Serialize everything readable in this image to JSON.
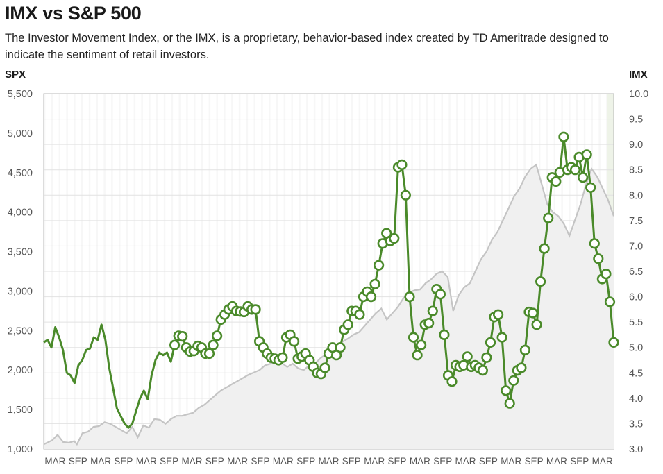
{
  "title": "IMX vs S&P 500",
  "subtitle": "The Investor Movement Index, or the IMX, is a proprietary, behavior-based index created by TD Ameritrade designed to indicate the sentiment of retail investors.",
  "left_axis_title": "SPX",
  "right_axis_title": "IMX",
  "colors": {
    "imx_line": "#4a8a2a",
    "spx_line": "#c4c4c4",
    "spx_fill": "#f0f0f0",
    "grid": "#e2e2e2",
    "tick_text": "#555555",
    "frame": "#b8b8b8"
  },
  "chart_data": {
    "type": "line",
    "title": "IMX vs S&P 500",
    "x_tick_labels": [
      "MAR",
      "SEP",
      "MAR",
      "SEP",
      "MAR",
      "SEP",
      "MAR",
      "SEP",
      "MAR",
      "SEP",
      "MAR",
      "SEP",
      "MAR",
      "SEP",
      "MAR",
      "SEP",
      "MAR",
      "SEP",
      "MAR",
      "SEP",
      "MAR",
      "SEP",
      "MAR",
      "SEP",
      "MAR"
    ],
    "y_left": {
      "label": "SPX",
      "min": 1000,
      "max": 5500,
      "ticks": [
        "1,000",
        "1,500",
        "2,000",
        "2,500",
        "3,000",
        "3,500",
        "4,000",
        "4,500",
        "5,000",
        "5,500"
      ]
    },
    "y_right": {
      "label": "IMX",
      "min": 3.0,
      "max": 10.0,
      "ticks": [
        "3.0",
        "3.5",
        "4.0",
        "4.5",
        "5.0",
        "5.5",
        "6.0",
        "6.5",
        "7.0",
        "7.5",
        "8.0",
        "8.5",
        "9.0",
        "9.5",
        "10.0"
      ]
    },
    "x_range_months": [
      0,
      152
    ],
    "series": [
      {
        "name": "SPX",
        "axis": "left",
        "style": "area",
        "points": [
          [
            0,
            1060
          ],
          [
            3,
            1110
          ],
          [
            5,
            1180
          ],
          [
            7,
            1090
          ],
          [
            9,
            1080
          ],
          [
            11,
            1100
          ],
          [
            12,
            1060
          ],
          [
            14,
            1200
          ],
          [
            16,
            1220
          ],
          [
            18,
            1280
          ],
          [
            20,
            1290
          ],
          [
            22,
            1340
          ],
          [
            24,
            1320
          ],
          [
            26,
            1280
          ],
          [
            28,
            1240
          ],
          [
            30,
            1200
          ],
          [
            32,
            1280
          ],
          [
            34,
            1150
          ],
          [
            36,
            1300
          ],
          [
            38,
            1270
          ],
          [
            40,
            1380
          ],
          [
            42,
            1370
          ],
          [
            44,
            1320
          ],
          [
            46,
            1380
          ],
          [
            48,
            1420
          ],
          [
            50,
            1420
          ],
          [
            52,
            1440
          ],
          [
            54,
            1460
          ],
          [
            56,
            1520
          ],
          [
            58,
            1560
          ],
          [
            60,
            1620
          ],
          [
            62,
            1680
          ],
          [
            64,
            1740
          ],
          [
            66,
            1780
          ],
          [
            68,
            1820
          ],
          [
            70,
            1860
          ],
          [
            72,
            1900
          ],
          [
            74,
            1940
          ],
          [
            76,
            1970
          ],
          [
            78,
            2000
          ],
          [
            80,
            2060
          ],
          [
            82,
            2080
          ],
          [
            84,
            2100
          ],
          [
            86,
            2090
          ],
          [
            88,
            2040
          ],
          [
            90,
            2080
          ],
          [
            92,
            2020
          ],
          [
            94,
            2000
          ],
          [
            96,
            2060
          ],
          [
            98,
            2080
          ],
          [
            100,
            2150
          ],
          [
            102,
            2200
          ],
          [
            104,
            2260
          ],
          [
            106,
            2320
          ],
          [
            108,
            2360
          ],
          [
            110,
            2400
          ],
          [
            112,
            2450
          ],
          [
            114,
            2480
          ],
          [
            116,
            2560
          ],
          [
            118,
            2640
          ],
          [
            120,
            2720
          ],
          [
            122,
            2780
          ],
          [
            124,
            2640
          ],
          [
            126,
            2720
          ],
          [
            128,
            2800
          ],
          [
            130,
            2910
          ],
          [
            132,
            2980
          ],
          [
            134,
            3010
          ],
          [
            136,
            3020
          ],
          [
            138,
            3100
          ],
          [
            140,
            3150
          ],
          [
            142,
            3220
          ],
          [
            144,
            3250
          ],
          [
            146,
            3180
          ],
          [
            148,
            2750
          ],
          [
            150,
            2950
          ],
          [
            152,
            3050
          ],
          [
            154,
            3100
          ],
          [
            156,
            3250
          ],
          [
            158,
            3400
          ],
          [
            160,
            3500
          ],
          [
            162,
            3650
          ],
          [
            164,
            3750
          ],
          [
            166,
            3900
          ],
          [
            168,
            4050
          ],
          [
            170,
            4200
          ],
          [
            172,
            4300
          ],
          [
            174,
            4450
          ],
          [
            176,
            4550
          ],
          [
            178,
            4600
          ],
          [
            180,
            4350
          ],
          [
            182,
            4100
          ],
          [
            184,
            4000
          ],
          [
            186,
            3950
          ],
          [
            188,
            3850
          ],
          [
            190,
            3700
          ],
          [
            192,
            3900
          ],
          [
            194,
            4100
          ],
          [
            196,
            4350
          ],
          [
            198,
            4550
          ],
          [
            200,
            4450
          ],
          [
            202,
            4300
          ],
          [
            204,
            4150
          ],
          [
            206,
            3950
          ]
        ]
      },
      {
        "name": "IMX",
        "axis": "right",
        "style": "line",
        "points": [
          [
            0,
            5.1
          ],
          [
            1,
            5.15
          ],
          [
            2,
            5.0
          ],
          [
            3,
            5.4
          ],
          [
            4,
            5.2
          ],
          [
            5,
            4.95
          ],
          [
            6,
            4.5
          ],
          [
            7,
            4.45
          ],
          [
            8,
            4.3
          ],
          [
            9,
            4.65
          ],
          [
            10,
            4.75
          ],
          [
            11,
            4.95
          ],
          [
            12,
            4.98
          ],
          [
            13,
            5.2
          ],
          [
            14,
            5.15
          ],
          [
            15,
            5.45
          ],
          [
            16,
            5.15
          ],
          [
            17,
            4.6
          ],
          [
            18,
            4.2
          ],
          [
            19,
            3.8
          ],
          [
            20,
            3.65
          ],
          [
            21,
            3.5
          ],
          [
            22,
            3.42
          ],
          [
            23,
            3.5
          ],
          [
            24,
            3.75
          ],
          [
            25,
            4.0
          ],
          [
            26,
            4.15
          ],
          [
            27,
            3.98
          ],
          [
            28,
            4.45
          ],
          [
            29,
            4.75
          ],
          [
            30,
            4.9
          ],
          [
            31,
            4.85
          ],
          [
            32,
            4.9
          ],
          [
            33,
            4.72
          ],
          [
            34,
            5.05
          ],
          [
            35,
            5.23
          ],
          [
            36,
            5.22
          ],
          [
            37,
            5.0
          ],
          [
            38,
            4.92
          ],
          [
            39,
            4.93
          ],
          [
            40,
            5.03
          ],
          [
            41,
            5.0
          ],
          [
            42,
            4.88
          ],
          [
            43,
            4.88
          ],
          [
            44,
            5.05
          ],
          [
            45,
            5.23
          ],
          [
            46,
            5.55
          ],
          [
            47,
            5.65
          ],
          [
            48,
            5.75
          ],
          [
            49,
            5.81
          ],
          [
            50,
            5.72
          ],
          [
            51,
            5.71
          ],
          [
            52,
            5.7
          ],
          [
            53,
            5.81
          ],
          [
            54,
            5.75
          ],
          [
            55,
            5.75
          ],
          [
            56,
            5.12
          ],
          [
            57,
            5.0
          ],
          [
            58,
            4.88
          ],
          [
            59,
            4.8
          ],
          [
            60,
            4.78
          ],
          [
            61,
            4.75
          ],
          [
            62,
            4.8
          ],
          [
            63,
            5.2
          ],
          [
            64,
            5.25
          ],
          [
            65,
            5.12
          ],
          [
            66,
            4.78
          ],
          [
            67,
            4.82
          ],
          [
            68,
            4.88
          ],
          [
            69,
            4.75
          ],
          [
            70,
            4.62
          ],
          [
            71,
            4.5
          ],
          [
            72,
            4.48
          ],
          [
            73,
            4.6
          ],
          [
            74,
            4.88
          ],
          [
            75,
            5.0
          ],
          [
            76,
            4.85
          ],
          [
            77,
            5.0
          ],
          [
            78,
            5.35
          ],
          [
            79,
            5.45
          ],
          [
            80,
            5.72
          ],
          [
            81,
            5.72
          ],
          [
            82,
            5.65
          ],
          [
            83,
            6.0
          ],
          [
            84,
            6.1
          ],
          [
            85,
            6.0
          ],
          [
            86,
            6.25
          ],
          [
            87,
            6.62
          ],
          [
            88,
            7.05
          ],
          [
            89,
            7.25
          ],
          [
            90,
            7.1
          ],
          [
            91,
            7.15
          ],
          [
            92,
            8.55
          ],
          [
            93,
            8.6
          ],
          [
            94,
            8.0
          ],
          [
            95,
            6.0
          ],
          [
            96,
            5.2
          ],
          [
            97,
            4.85
          ],
          [
            98,
            5.05
          ],
          [
            99,
            5.45
          ],
          [
            100,
            5.48
          ],
          [
            101,
            5.72
          ],
          [
            102,
            6.15
          ],
          [
            103,
            6.05
          ],
          [
            104,
            5.25
          ],
          [
            105,
            4.45
          ],
          [
            106,
            4.33
          ],
          [
            107,
            4.65
          ],
          [
            108,
            4.62
          ],
          [
            109,
            4.65
          ],
          [
            110,
            4.82
          ],
          [
            111,
            4.62
          ],
          [
            112,
            4.65
          ],
          [
            113,
            4.6
          ],
          [
            114,
            4.55
          ],
          [
            115,
            4.8
          ],
          [
            116,
            5.1
          ],
          [
            117,
            5.6
          ],
          [
            118,
            5.65
          ],
          [
            119,
            5.2
          ],
          [
            120,
            4.15
          ],
          [
            121,
            3.9
          ],
          [
            122,
            4.35
          ],
          [
            123,
            4.55
          ],
          [
            124,
            4.6
          ],
          [
            125,
            4.95
          ],
          [
            126,
            5.7
          ],
          [
            127,
            5.68
          ],
          [
            128,
            5.45
          ],
          [
            129,
            6.3
          ],
          [
            130,
            6.95
          ],
          [
            131,
            7.55
          ],
          [
            132,
            8.35
          ],
          [
            133,
            8.27
          ],
          [
            134,
            8.45
          ],
          [
            135,
            9.15
          ],
          [
            136,
            8.5
          ],
          [
            137,
            8.55
          ],
          [
            138,
            8.5
          ],
          [
            139,
            8.75
          ],
          [
            140,
            8.35
          ],
          [
            141,
            8.8
          ],
          [
            142,
            8.15
          ],
          [
            143,
            7.05
          ],
          [
            144,
            6.75
          ],
          [
            145,
            6.35
          ],
          [
            146,
            6.45
          ],
          [
            147,
            5.9
          ],
          [
            148,
            5.1
          ]
        ]
      }
    ]
  }
}
